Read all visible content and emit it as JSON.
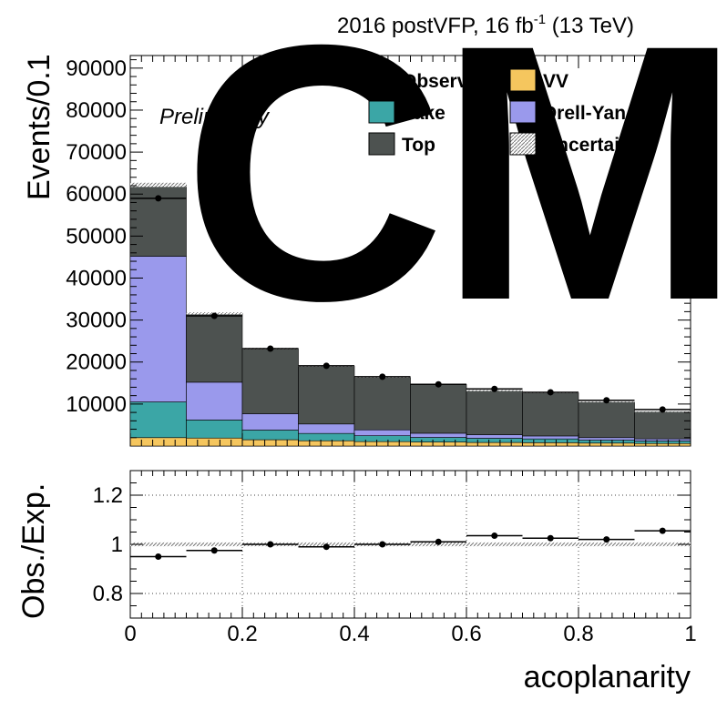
{
  "chart_data": {
    "type": "bar",
    "header": "2016 postVFP, 16 fb",
    "header_superscript": "-1",
    "header_suffix": " (13 TeV)",
    "logo_text": "CMS",
    "preliminary": "Preliminary",
    "xlabel": "acoplanarity",
    "ylabel": "Events/0.1",
    "ratio_ylabel": "Obs./Exp.",
    "xlim": [
      0,
      1
    ],
    "ylim": [
      0,
      93000
    ],
    "ratio_ylim": [
      0.7,
      1.3
    ],
    "bin_edges": [
      0,
      0.1,
      0.2,
      0.3,
      0.4,
      0.5,
      0.6,
      0.7,
      0.8,
      0.9,
      1.0
    ],
    "x_ticks": [
      "0",
      "0.2",
      "0.4",
      "0.6",
      "0.8",
      "1"
    ],
    "y_ticks": [
      "10000",
      "20000",
      "30000",
      "40000",
      "50000",
      "60000",
      "70000",
      "80000",
      "90000"
    ],
    "ratio_y_ticks": [
      "0.8",
      "1",
      "1.2"
    ],
    "series": [
      {
        "name": "VV",
        "color": "#f5c65e",
        "values": [
          2000,
          1900,
          1500,
          1250,
          1050,
          950,
          850,
          800,
          700,
          600
        ]
      },
      {
        "name": "Fake",
        "color": "#3ba6a6",
        "values": [
          8500,
          4300,
          2300,
          1750,
          1400,
          1100,
          1000,
          900,
          700,
          600
        ]
      },
      {
        "name": "Drell-Yan",
        "color": "#9a99ec",
        "values": [
          34700,
          9000,
          3900,
          2250,
          1400,
          1000,
          850,
          700,
          600,
          500
        ]
      },
      {
        "name": "Top",
        "color": "#4d5250",
        "values": [
          17000,
          16400,
          15500,
          13800,
          12550,
          11600,
          10500,
          10300,
          8500,
          6500
        ]
      }
    ],
    "observed": {
      "name": "Observed",
      "values": [
        59000,
        31000,
        23200,
        19100,
        16500,
        14700,
        13600,
        12800,
        10900,
        8700
      ]
    },
    "ratio": {
      "values": [
        0.95,
        0.975,
        1.0,
        0.99,
        1.0,
        1.01,
        1.035,
        1.025,
        1.02,
        1.055
      ]
    },
    "uncertainty": {
      "name": "Uncertainty"
    },
    "legend": [
      {
        "name": "Observed",
        "kind": "marker"
      },
      {
        "name": "VV",
        "kind": "fill",
        "color": "#f5c65e"
      },
      {
        "name": "Fake",
        "kind": "fill",
        "color": "#3ba6a6"
      },
      {
        "name": "Drell-Yan",
        "kind": "fill",
        "color": "#9a99ec"
      },
      {
        "name": "Top",
        "kind": "fill",
        "color": "#4d5250"
      },
      {
        "name": "Uncertainty",
        "kind": "hatch",
        "color": "#aaaaaa"
      }
    ],
    "legend_placement": "top-right",
    "ratio_grid": true
  }
}
